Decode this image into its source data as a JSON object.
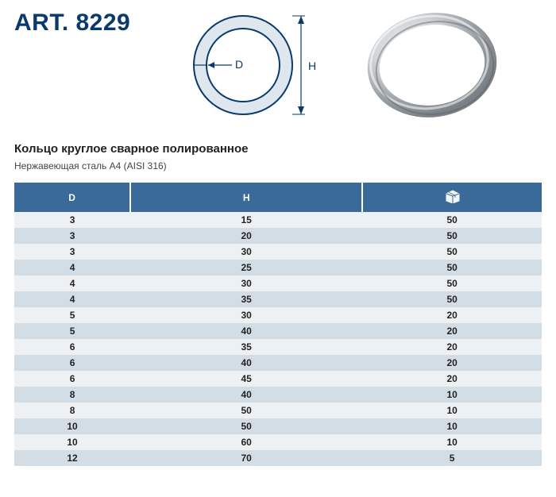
{
  "header": {
    "art_label": "ART. 8229",
    "subtitle": "Кольцо круглое сварное полированное",
    "material": "Нержавеющая сталь А4 (AISI 316)"
  },
  "diagram": {
    "outer_radius": 62,
    "inner_radius": 46,
    "stroke": "#0a3a6b",
    "fill": "#dfe7ee",
    "D_label": "D",
    "H_label": "H"
  },
  "photo": {
    "highlight": "#e8e9ea",
    "shadow": "#8f9398"
  },
  "table": {
    "header_bg": "#3a6a9a",
    "header_text": "#ffffff",
    "row_odd_bg": "#eef1f3",
    "row_even_bg": "#d2dde5",
    "columns": {
      "D": "D",
      "H": "H",
      "qty_icon": "box"
    },
    "rows": [
      {
        "D": "3",
        "H": "15",
        "qty": "50"
      },
      {
        "D": "3",
        "H": "20",
        "qty": "50"
      },
      {
        "D": "3",
        "H": "30",
        "qty": "50"
      },
      {
        "D": "4",
        "H": "25",
        "qty": "50"
      },
      {
        "D": "4",
        "H": "30",
        "qty": "50"
      },
      {
        "D": "4",
        "H": "35",
        "qty": "50"
      },
      {
        "D": "5",
        "H": "30",
        "qty": "20"
      },
      {
        "D": "5",
        "H": "40",
        "qty": "20"
      },
      {
        "D": "6",
        "H": "35",
        "qty": "20"
      },
      {
        "D": "6",
        "H": "40",
        "qty": "20"
      },
      {
        "D": "6",
        "H": "45",
        "qty": "20"
      },
      {
        "D": "8",
        "H": "40",
        "qty": "10"
      },
      {
        "D": "8",
        "H": "50",
        "qty": "10"
      },
      {
        "D": "10",
        "H": "50",
        "qty": "10"
      },
      {
        "D": "10",
        "H": "60",
        "qty": "10"
      },
      {
        "D": "12",
        "H": "70",
        "qty": "5"
      }
    ]
  }
}
